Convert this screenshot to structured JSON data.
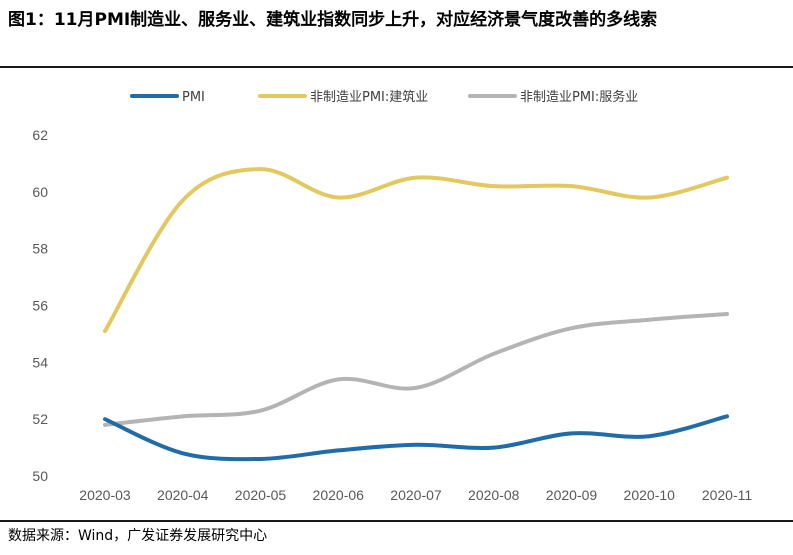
{
  "title": "图1：11月PMI制造业、服务业、建筑业指数同步上升，对应经济景气度改善的多线索",
  "source": "数据来源：Wind，广发证券发展研究中心",
  "colors": {
    "pmi": "#1F6CA8",
    "construction": "#E3C75F",
    "services": "#B4B4B4"
  },
  "chart_data": {
    "type": "line",
    "title": "",
    "xlabel": "",
    "ylabel": "",
    "ylim": [
      50,
      62
    ],
    "yticks": [
      "50",
      "52",
      "54",
      "56",
      "58",
      "60",
      "62"
    ],
    "grid": false,
    "legend_position": "top",
    "categories": [
      "2020-03",
      "2020-04",
      "2020-05",
      "2020-06",
      "2020-07",
      "2020-08",
      "2020-09",
      "2020-10",
      "2020-11"
    ],
    "series": [
      {
        "name": "PMI",
        "color": "#1F6CA8",
        "values": [
          52.0,
          50.8,
          50.6,
          50.9,
          51.1,
          51.0,
          51.5,
          51.4,
          52.1
        ]
      },
      {
        "name": "非制造业PMI:建筑业",
        "color": "#E3C75F",
        "values": [
          55.1,
          59.7,
          60.8,
          59.8,
          60.5,
          60.2,
          60.2,
          59.8,
          60.5
        ]
      },
      {
        "name": "非制造业PMI:服务业",
        "color": "#B4B4B4",
        "values": [
          51.8,
          52.1,
          52.3,
          53.4,
          53.1,
          54.3,
          55.2,
          55.5,
          55.7
        ]
      }
    ]
  }
}
